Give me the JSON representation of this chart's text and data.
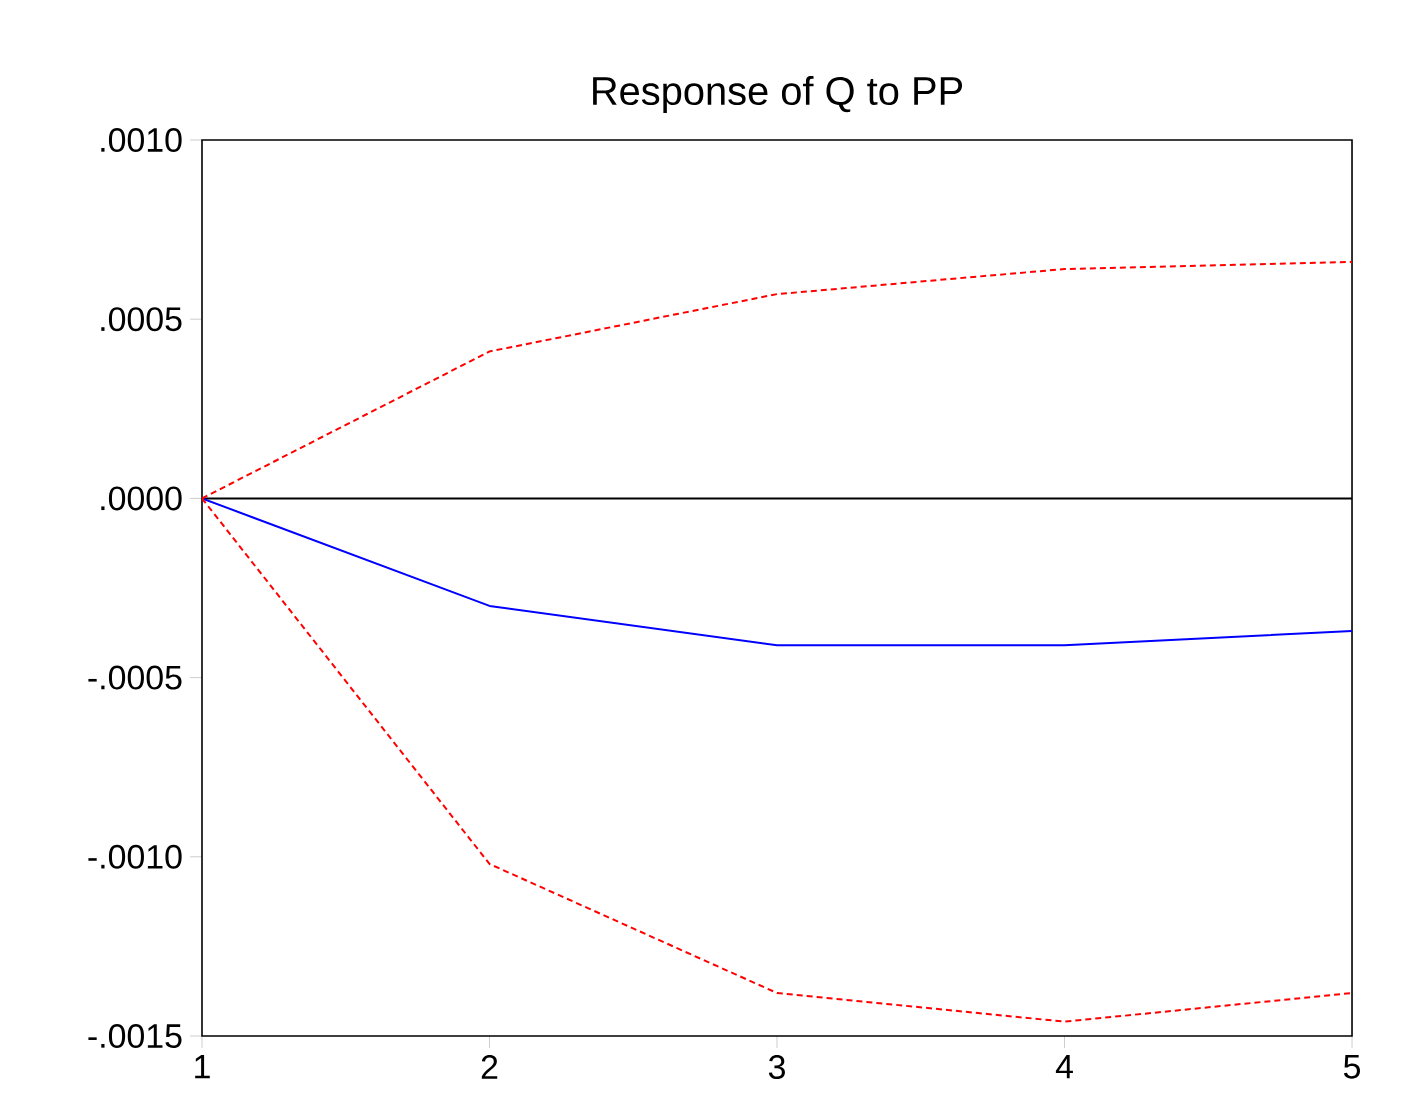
{
  "chart_data": {
    "type": "line",
    "title": "Response of Q to PP",
    "x": [
      1,
      2,
      3,
      4,
      5
    ],
    "series": [
      {
        "color": "#0000ff",
        "line_style": "solid",
        "values": [
          0,
          -0.0003,
          -0.00041,
          -0.00041,
          -0.00037
        ]
      },
      {
        "color": "#ff0000",
        "line_style": "dashed",
        "values": [
          0,
          0.00041,
          0.00057,
          0.00064,
          0.00066
        ]
      },
      {
        "color": "#ff0000",
        "line_style": "dashed",
        "values": [
          0,
          -0.00102,
          -0.00138,
          -0.00146,
          -0.00138
        ]
      }
    ],
    "xlim": [
      1,
      5
    ],
    "ylim": [
      -0.0015,
      0.001
    ],
    "xticks": [
      1,
      2,
      3,
      4,
      5
    ],
    "yticks": [
      {
        "value": -0.0015,
        "label": "-.0015"
      },
      {
        "value": -0.001,
        "label": "-.0010"
      },
      {
        "value": -0.0005,
        "label": "-.0005"
      },
      {
        "value": 0,
        "label": ".0000"
      },
      {
        "value": 0.0005,
        "label": ".0005"
      },
      {
        "value": 0.001,
        "label": ".0010"
      }
    ],
    "ref_lines": [
      {
        "axis": "y",
        "value": 0,
        "color": "#000000"
      }
    ],
    "marker": "none"
  }
}
